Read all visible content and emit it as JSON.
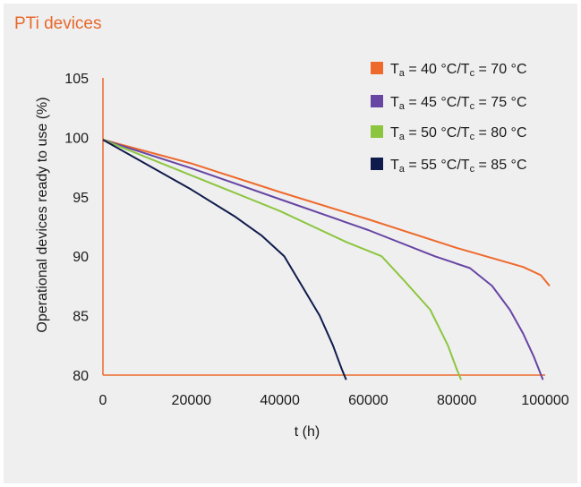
{
  "title": "PTi devices",
  "chart_data": {
    "type": "line",
    "xlabel": "t (h)",
    "ylabel": "Operational devices ready to use (%)",
    "xlim": [
      0,
      100000
    ],
    "ylim": [
      80,
      105
    ],
    "xticks": [
      0,
      20000,
      40000,
      60000,
      80000,
      100000
    ],
    "yticks": [
      80,
      85,
      90,
      95,
      100,
      105
    ],
    "grid": false,
    "legend_position": "top-right",
    "series": [
      {
        "name": "Ta = 40 °C/Tc = 70 °C",
        "name_parts": {
          "t1": "T",
          "s1": "a",
          "v1": " = 40 °C/T",
          "s2": "c",
          "v2": " = 70 °C"
        },
        "color": "#ee6a2c",
        "points": [
          [
            0,
            99.8
          ],
          [
            20000,
            97.8
          ],
          [
            40000,
            95.4
          ],
          [
            60000,
            93.1
          ],
          [
            80000,
            90.7
          ],
          [
            95000,
            89.1
          ],
          [
            99000,
            88.4
          ],
          [
            101000,
            87.5
          ]
        ]
      },
      {
        "name": "Ta = 45 °C/Tc = 75 °C",
        "name_parts": {
          "t1": "T",
          "s1": "a",
          "v1": " = 45 °C/T",
          "s2": "c",
          "v2": " = 75 °C"
        },
        "color": "#6745a3",
        "points": [
          [
            0,
            99.8
          ],
          [
            20000,
            97.4
          ],
          [
            40000,
            94.8
          ],
          [
            60000,
            92.2
          ],
          [
            75000,
            90.0
          ],
          [
            83000,
            89.0
          ],
          [
            88000,
            87.5
          ],
          [
            92000,
            85.5
          ],
          [
            95000,
            83.5
          ],
          [
            97500,
            81.5
          ],
          [
            99500,
            79.6
          ]
        ]
      },
      {
        "name": "Ta = 50 °C/Tc = 80 °C",
        "name_parts": {
          "t1": "T",
          "s1": "a",
          "v1": " = 50 °C/T",
          "s2": "c",
          "v2": " = 80 °C"
        },
        "color": "#8cc63f",
        "points": [
          [
            0,
            99.8
          ],
          [
            20000,
            96.8
          ],
          [
            40000,
            93.8
          ],
          [
            55000,
            91.2
          ],
          [
            63000,
            90.0
          ],
          [
            68000,
            88.0
          ],
          [
            74000,
            85.5
          ],
          [
            78000,
            82.5
          ],
          [
            80000,
            80.5
          ],
          [
            81000,
            79.6
          ]
        ]
      },
      {
        "name": "Ta = 55 °C/Tc = 85 °C",
        "name_parts": {
          "t1": "T",
          "s1": "a",
          "v1": " = 55 °C/T",
          "s2": "c",
          "v2": " = 85 °C"
        },
        "color": "#0f1b4b",
        "points": [
          [
            0,
            99.8
          ],
          [
            20000,
            95.6
          ],
          [
            30000,
            93.3
          ],
          [
            36000,
            91.7
          ],
          [
            41000,
            90.0
          ],
          [
            45000,
            87.5
          ],
          [
            49000,
            85.0
          ],
          [
            52000,
            82.5
          ],
          [
            54000,
            80.5
          ],
          [
            55000,
            79.6
          ]
        ]
      }
    ]
  }
}
